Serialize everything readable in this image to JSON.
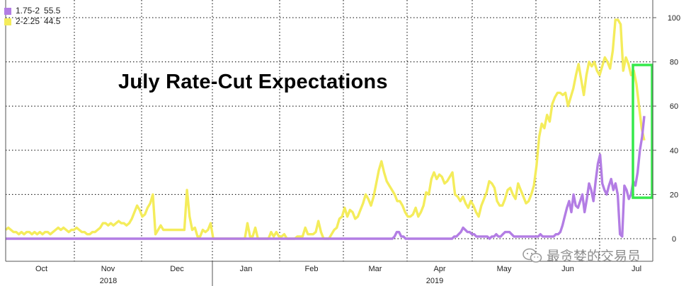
{
  "chart_data": {
    "type": "line",
    "title": "July Rate-Cut Expectations",
    "x_ticks": [
      "Oct",
      "Nov",
      "Dec",
      "Jan",
      "Feb",
      "Mar",
      "Apr",
      "May",
      "Jun",
      "Jul"
    ],
    "year_labels": [
      "2018",
      "2019"
    ],
    "y_ticks": [
      0,
      20,
      40,
      60,
      80,
      100
    ],
    "ylim": [
      -5,
      106
    ],
    "y_axis_side": "right",
    "grid": true,
    "legend_position": "top-left",
    "series": [
      {
        "name": "1.75-2",
        "last_value": "55.5",
        "color": "#b37de4",
        "values": [
          0,
          0,
          0,
          0,
          0,
          0,
          0,
          0,
          0,
          0,
          0,
          0,
          0,
          0,
          0,
          0,
          0,
          0,
          0,
          0,
          0,
          0,
          0,
          0,
          0,
          0,
          0,
          0,
          0,
          0,
          0,
          0,
          0,
          0,
          0,
          0,
          0,
          0,
          0,
          0,
          0,
          0,
          0,
          0,
          0,
          0,
          0,
          0,
          0,
          0,
          0,
          0,
          0,
          0,
          0,
          0,
          0,
          0,
          0,
          0,
          0,
          0,
          0,
          0,
          0,
          0,
          0,
          0,
          0,
          0,
          0,
          0,
          0,
          0,
          0,
          0,
          0,
          0,
          0,
          0,
          0,
          0,
          0,
          0,
          0,
          0,
          0,
          0,
          0,
          0,
          0,
          0,
          0,
          0,
          0,
          0,
          0,
          0,
          0,
          0,
          0,
          0,
          0,
          0,
          0,
          0,
          0,
          0,
          0,
          0,
          0,
          0,
          0,
          0,
          0,
          0,
          0,
          0,
          0,
          0,
          0,
          0,
          0,
          0,
          0,
          0,
          0,
          0,
          0,
          0,
          0,
          0,
          0,
          0,
          0,
          0,
          0,
          0,
          0,
          0,
          0,
          0,
          0,
          0,
          0,
          0,
          0,
          0,
          0,
          0,
          0,
          0,
          0,
          0,
          0,
          0,
          0,
          0,
          0,
          0,
          0,
          0,
          0,
          0,
          0,
          0,
          0,
          0,
          0,
          0,
          0,
          0,
          0,
          0,
          0,
          0,
          1,
          3,
          3,
          1,
          1,
          0,
          0,
          0,
          0,
          0,
          0,
          0,
          0,
          0,
          0,
          0,
          0,
          0,
          0,
          0,
          0,
          0,
          0,
          0,
          0,
          0,
          0,
          1,
          1,
          2,
          3,
          5,
          4,
          3,
          3,
          2,
          2,
          1,
          1,
          1,
          1,
          1,
          1,
          0,
          1,
          1,
          2,
          1,
          1,
          2,
          3,
          3,
          3,
          2,
          1,
          1,
          1,
          1,
          1,
          1,
          1,
          1,
          1,
          1,
          1,
          1,
          2,
          1,
          1,
          1,
          1,
          1,
          1,
          2,
          2,
          3,
          6,
          10,
          14,
          17,
          12,
          20,
          15,
          14,
          17,
          20,
          12,
          18,
          25,
          22,
          17,
          26,
          34,
          38,
          25,
          22,
          20,
          24,
          27,
          22,
          25,
          20,
          2,
          1,
          24,
          22,
          18,
          20,
          26,
          24,
          30,
          40,
          46,
          55.5
        ]
      },
      {
        "name": "2-2.25",
        "last_value": "44.5",
        "color": "#f4ec5b",
        "values": [
          4,
          5,
          4,
          3,
          3,
          2,
          3,
          2,
          3,
          3,
          2,
          3,
          2,
          3,
          2,
          3,
          3,
          2,
          3,
          4,
          5,
          4,
          5,
          4,
          3,
          4,
          4,
          5,
          4,
          3,
          3,
          2,
          2,
          3,
          3,
          4,
          5,
          7,
          7,
          6,
          7,
          6,
          7,
          8,
          7,
          7,
          6,
          7,
          9,
          12,
          15,
          13,
          10,
          11,
          14,
          16,
          20,
          2,
          4,
          6,
          4,
          4,
          4,
          4,
          4,
          4,
          4,
          4,
          4,
          22,
          10,
          4,
          5,
          1,
          1,
          4,
          3,
          4,
          7,
          0,
          0,
          0,
          0,
          0,
          0,
          0,
          0,
          0,
          0,
          0,
          0,
          0,
          7,
          1,
          1,
          5,
          0,
          0,
          0,
          0,
          0,
          3,
          1,
          3,
          1,
          1,
          2,
          0,
          0,
          0,
          0,
          1,
          1,
          1,
          5,
          2,
          2,
          2,
          3,
          8,
          3,
          0,
          0,
          0,
          2,
          4,
          5,
          9,
          10,
          14,
          10,
          13,
          12,
          9,
          10,
          13,
          16,
          20,
          18,
          15,
          19,
          25,
          31,
          35,
          30,
          26,
          24,
          22,
          20,
          17,
          17,
          15,
          12,
          10,
          10,
          11,
          14,
          10,
          12,
          15,
          21,
          20,
          27,
          30,
          27,
          29,
          28,
          25,
          26,
          28,
          30,
          20,
          19,
          17,
          19,
          16,
          14,
          17,
          15,
          12,
          10,
          15,
          18,
          21,
          26,
          25,
          23,
          17,
          15,
          15,
          18,
          22,
          23,
          20,
          18,
          25,
          22,
          19,
          16,
          17,
          20,
          24,
          33,
          46,
          52,
          50,
          56,
          53,
          61,
          64,
          66,
          66,
          65,
          66,
          60,
          64,
          68,
          74,
          79,
          72,
          65,
          74,
          80,
          78,
          80,
          76,
          74,
          78,
          82,
          80,
          77,
          85,
          99,
          99,
          97,
          76,
          82,
          79,
          74,
          76,
          70,
          60,
          50,
          44.5
        ]
      }
    ]
  },
  "watermark_text": "最贪婪的交易员"
}
